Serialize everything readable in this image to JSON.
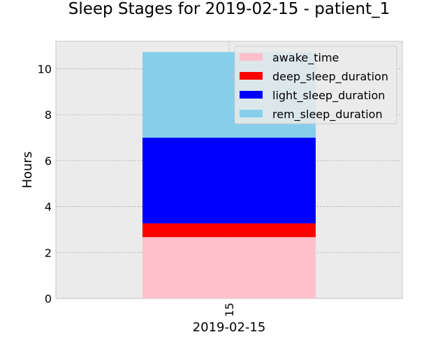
{
  "chart_data": {
    "type": "bar",
    "stacked": true,
    "title": "Sleep Stages for 2019-02-15 - patient_1",
    "xlabel": "2019-02-15",
    "ylabel": "Hours",
    "categories": [
      "15"
    ],
    "ylim": [
      0,
      11.2
    ],
    "yticks": [
      0,
      2,
      4,
      6,
      8,
      10
    ],
    "grid": true,
    "legend_position": "top-right",
    "series": [
      {
        "name": "awake_time",
        "color": "#ffc0cb",
        "values": [
          2.67
        ]
      },
      {
        "name": "deep_sleep_duration",
        "color": "#ff0000",
        "values": [
          0.6
        ]
      },
      {
        "name": "light_sleep_duration",
        "color": "#0000ff",
        "values": [
          3.73
        ]
      },
      {
        "name": "rem_sleep_duration",
        "color": "#87ceeb",
        "values": [
          3.73
        ]
      }
    ]
  }
}
